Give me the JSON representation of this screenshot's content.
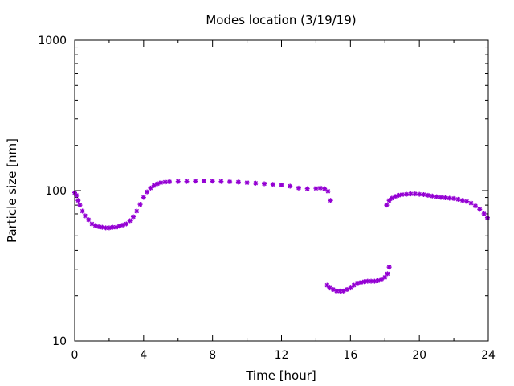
{
  "chart_data": {
    "type": "scatter",
    "title": "Modes location (3/19/19)",
    "xlabel": "Time [hour]",
    "ylabel": "Particle size [nm]",
    "xlim": [
      0,
      24
    ],
    "ylim": [
      10,
      1000
    ],
    "yscale": "log",
    "grid": false,
    "legend": "none",
    "marker": "star",
    "color": "#9400d3",
    "x_ticks": [
      0,
      4,
      8,
      12,
      16,
      20,
      24
    ],
    "x_tick_labels": [
      "0",
      "4",
      "8",
      "12",
      "16",
      "20",
      "24"
    ],
    "x_minor_ticks": [
      2,
      6,
      10,
      14,
      18,
      22
    ],
    "y_ticks": [
      10,
      100,
      1000
    ],
    "y_tick_labels": [
      "10",
      "100",
      "1000"
    ],
    "y_minor_ticks": [
      20,
      30,
      40,
      50,
      60,
      70,
      80,
      90,
      200,
      300,
      400,
      500,
      600,
      700,
      800,
      900
    ],
    "series": [
      {
        "points": [
          [
            0.0,
            97
          ],
          [
            0.1,
            93
          ],
          [
            0.2,
            86
          ],
          [
            0.3,
            80
          ],
          [
            0.45,
            73
          ],
          [
            0.6,
            68
          ],
          [
            0.8,
            64
          ],
          [
            1.0,
            60
          ],
          [
            1.2,
            58.5
          ],
          [
            1.4,
            57.5
          ],
          [
            1.6,
            57
          ],
          [
            1.8,
            56.5
          ],
          [
            2.0,
            56.5
          ],
          [
            2.2,
            57
          ],
          [
            2.4,
            57
          ],
          [
            2.6,
            58
          ],
          [
            2.8,
            59
          ],
          [
            3.0,
            60
          ],
          [
            3.2,
            63
          ],
          [
            3.4,
            67
          ],
          [
            3.6,
            73
          ],
          [
            3.8,
            81
          ],
          [
            4.0,
            90
          ],
          [
            4.2,
            98
          ],
          [
            4.4,
            104
          ],
          [
            4.6,
            108
          ],
          [
            4.8,
            111
          ],
          [
            5.0,
            113
          ],
          [
            5.25,
            114
          ],
          [
            5.5,
            114.5
          ],
          [
            6.0,
            115
          ],
          [
            6.5,
            115
          ],
          [
            7.0,
            115.5
          ],
          [
            7.5,
            116
          ],
          [
            8.0,
            115.5
          ],
          [
            8.5,
            115
          ],
          [
            9.0,
            114.5
          ],
          [
            9.5,
            114
          ],
          [
            10.0,
            113
          ],
          [
            10.5,
            112
          ],
          [
            11.0,
            111
          ],
          [
            11.5,
            110
          ],
          [
            12.0,
            109
          ],
          [
            12.5,
            107
          ],
          [
            13.0,
            104
          ],
          [
            13.5,
            103
          ],
          [
            14.0,
            103.5
          ],
          [
            14.25,
            104
          ],
          [
            14.5,
            103
          ],
          [
            14.7,
            99
          ],
          [
            14.85,
            86
          ]
        ]
      },
      {
        "points": [
          [
            14.65,
            23.5
          ],
          [
            14.8,
            22.5
          ],
          [
            15.0,
            22
          ],
          [
            15.2,
            21.5
          ],
          [
            15.4,
            21.5
          ],
          [
            15.6,
            21.5
          ],
          [
            15.8,
            22
          ],
          [
            16.0,
            22.5
          ],
          [
            16.2,
            23.5
          ],
          [
            16.4,
            24
          ],
          [
            16.6,
            24.5
          ],
          [
            16.8,
            24.8
          ],
          [
            17.0,
            25
          ],
          [
            17.2,
            25
          ],
          [
            17.4,
            25
          ],
          [
            17.6,
            25.2
          ],
          [
            17.8,
            25.5
          ],
          [
            18.0,
            26.5
          ],
          [
            18.15,
            28
          ],
          [
            18.25,
            31
          ]
        ]
      },
      {
        "points": [
          [
            18.1,
            80
          ],
          [
            18.25,
            86
          ],
          [
            18.4,
            89
          ],
          [
            18.6,
            91.5
          ],
          [
            18.8,
            93
          ],
          [
            19.0,
            94
          ],
          [
            19.25,
            94.5
          ],
          [
            19.5,
            95
          ],
          [
            19.75,
            95
          ],
          [
            20.0,
            94.5
          ],
          [
            20.25,
            94
          ],
          [
            20.5,
            93
          ],
          [
            20.75,
            92
          ],
          [
            21.0,
            91
          ],
          [
            21.25,
            90
          ],
          [
            21.5,
            89.5
          ],
          [
            21.75,
            89
          ],
          [
            22.0,
            88.5
          ],
          [
            22.25,
            87.5
          ],
          [
            22.5,
            86
          ],
          [
            22.75,
            84.5
          ],
          [
            23.0,
            82.5
          ],
          [
            23.25,
            79
          ],
          [
            23.5,
            75
          ],
          [
            23.75,
            70
          ],
          [
            23.95,
            66
          ]
        ]
      }
    ]
  }
}
